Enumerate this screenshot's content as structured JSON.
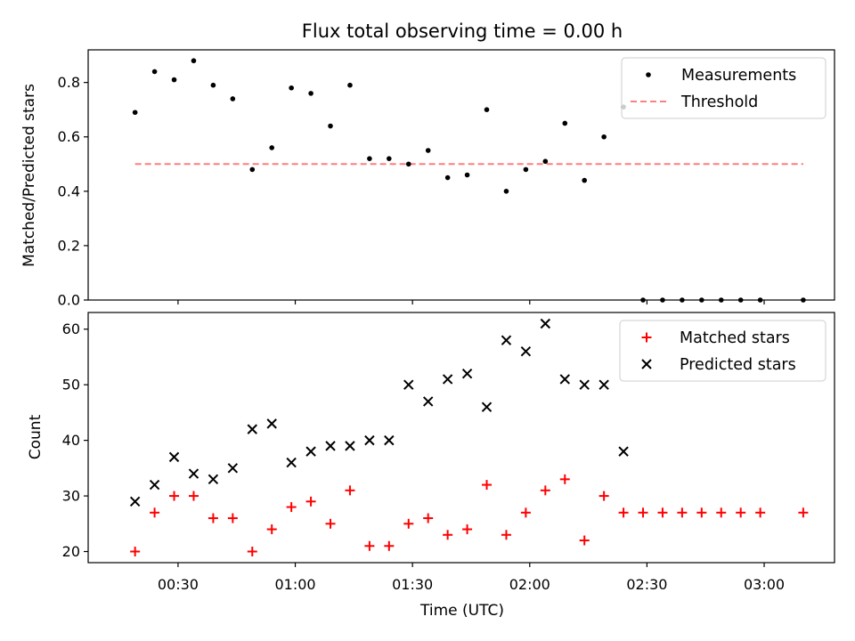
{
  "chart_data": [
    {
      "type": "scatter",
      "title": "Flux total observing time = 0.00 h",
      "xlabel": "",
      "ylabel": "Matched/Predicted stars",
      "ylim": [
        0,
        0.92
      ],
      "yticks": [
        "0.0",
        "0.2",
        "0.4",
        "0.6",
        "0.8"
      ],
      "xlim": [
        "00:07",
        "03:18"
      ],
      "grid": false,
      "legend_position": "top-right",
      "series": [
        {
          "name": "Measurements",
          "marker": "dot",
          "color": "#000000",
          "x": [
            "00:19",
            "00:24",
            "00:29",
            "00:34",
            "00:39",
            "00:44",
            "00:49",
            "00:54",
            "00:59",
            "01:04",
            "01:09",
            "01:14",
            "01:19",
            "01:24",
            "01:29",
            "01:34",
            "01:39",
            "01:44",
            "01:49",
            "01:54",
            "01:59",
            "02:04",
            "02:09",
            "02:14",
            "02:19",
            "02:24",
            "02:29",
            "02:34",
            "02:39",
            "02:44",
            "02:49",
            "02:54",
            "02:59",
            "03:10"
          ],
          "y": [
            0.69,
            0.84,
            0.81,
            0.88,
            0.79,
            0.74,
            0.48,
            0.56,
            0.78,
            0.76,
            0.64,
            0.79,
            0.52,
            0.52,
            0.5,
            0.55,
            0.45,
            0.46,
            0.7,
            0.4,
            0.48,
            0.51,
            0.65,
            0.44,
            0.6,
            0.71,
            0.0,
            0.0,
            0.0,
            0.0,
            0.0,
            0.0,
            0.0,
            0.0
          ]
        },
        {
          "name": "Threshold",
          "style": "dashed-line",
          "color": "#ff7f7f",
          "x": [
            "00:19",
            "03:10"
          ],
          "y": [
            0.5,
            0.5
          ]
        }
      ]
    },
    {
      "type": "scatter",
      "title": "",
      "xlabel": "Time (UTC)",
      "ylabel": "Count",
      "ylim": [
        18,
        63
      ],
      "yticks": [
        "20",
        "30",
        "40",
        "50",
        "60"
      ],
      "xlim": [
        "00:07",
        "03:18"
      ],
      "xticks": [
        "00:30",
        "01:00",
        "01:30",
        "02:00",
        "02:30",
        "03:00"
      ],
      "grid": false,
      "legend_position": "top-right",
      "series": [
        {
          "name": "Matched stars",
          "marker": "plus",
          "color": "#ff0000",
          "x": [
            "00:19",
            "00:24",
            "00:29",
            "00:34",
            "00:39",
            "00:44",
            "00:49",
            "00:54",
            "00:59",
            "01:04",
            "01:09",
            "01:14",
            "01:19",
            "01:24",
            "01:29",
            "01:34",
            "01:39",
            "01:44",
            "01:49",
            "01:54",
            "01:59",
            "02:04",
            "02:09",
            "02:14",
            "02:19",
            "02:24",
            "02:29",
            "02:34",
            "02:39",
            "02:44",
            "02:49",
            "02:54",
            "02:59",
            "03:10"
          ],
          "y": [
            20,
            27,
            30,
            30,
            26,
            26,
            20,
            24,
            28,
            29,
            25,
            31,
            21,
            21,
            25,
            26,
            23,
            24,
            32,
            23,
            27,
            31,
            33,
            22,
            30,
            27,
            27,
            27,
            27,
            27,
            27,
            27,
            27,
            27
          ]
        },
        {
          "name": "Predicted stars",
          "marker": "x",
          "color": "#000000",
          "x": [
            "00:19",
            "00:24",
            "00:29",
            "00:34",
            "00:39",
            "00:44",
            "00:49",
            "00:54",
            "00:59",
            "01:04",
            "01:09",
            "01:14",
            "01:19",
            "01:24",
            "01:29",
            "01:34",
            "01:39",
            "01:44",
            "01:49",
            "01:54",
            "01:59",
            "02:04",
            "02:09",
            "02:14",
            "02:19",
            "02:24"
          ],
          "y": [
            29,
            32,
            37,
            34,
            33,
            35,
            42,
            43,
            36,
            38,
            39,
            39,
            40,
            40,
            50,
            47,
            51,
            52,
            46,
            58,
            56,
            61,
            51,
            50,
            50,
            38
          ]
        }
      ]
    }
  ]
}
